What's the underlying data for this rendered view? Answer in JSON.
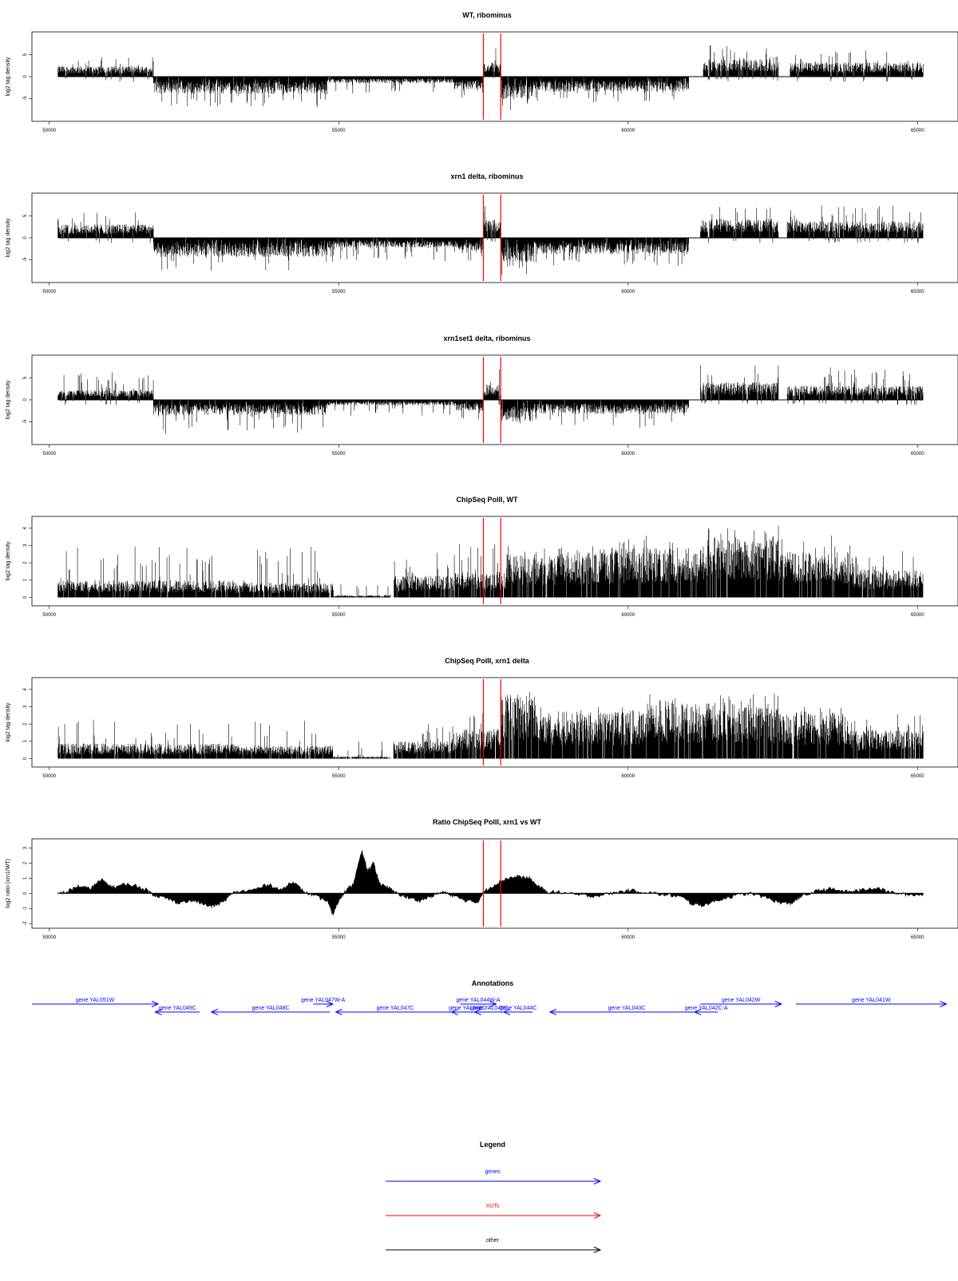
{
  "chart_data": [
    {
      "type": "bar",
      "title": "WT, ribominus",
      "ylabel": "log2 tag density",
      "xlim": [
        49700,
        65700
      ],
      "ylim": [
        -9.5,
        9.5
      ],
      "yticks": [
        -5,
        0,
        5
      ],
      "xticks": [
        50000,
        55000,
        60000,
        65000
      ],
      "markers": [
        57500,
        57800
      ],
      "segments": [
        {
          "x0": 50150,
          "x1": 51800,
          "sign": 1,
          "mean": 2.0,
          "max": 4.6
        },
        {
          "x0": 51800,
          "x1": 54800,
          "sign": -1,
          "mean": 3.2,
          "max": 7.0
        },
        {
          "x0": 54800,
          "x1": 57000,
          "sign": -1,
          "mean": 1.2,
          "max": 4.0
        },
        {
          "x0": 57000,
          "x1": 57500,
          "sign": -1,
          "mean": 2.4,
          "max": 5.0
        },
        {
          "x0": 57500,
          "x1": 57800,
          "sign": 1,
          "mean": 2.5,
          "max": 6.5
        },
        {
          "x0": 57800,
          "x1": 58350,
          "sign": -1,
          "mean": 4.2,
          "max": 8.0
        },
        {
          "x0": 58350,
          "x1": 61050,
          "sign": -1,
          "mean": 2.8,
          "max": 6.0
        },
        {
          "x0": 61300,
          "x1": 62600,
          "sign": 1,
          "mean": 3.2,
          "max": 7.2
        },
        {
          "x0": 62800,
          "x1": 65100,
          "sign": 1,
          "mean": 2.6,
          "max": 6.0
        }
      ]
    },
    {
      "type": "bar",
      "title": "xrn1 delta, ribominus",
      "ylabel": "log2 tag density",
      "xlim": [
        49700,
        65700
      ],
      "ylim": [
        -9.5,
        9.5
      ],
      "yticks": [
        -5,
        0,
        5
      ],
      "xticks": [
        50000,
        55000,
        60000,
        65000
      ],
      "markers": [
        57500,
        57800
      ],
      "segments": [
        {
          "x0": 50150,
          "x1": 51800,
          "sign": 1,
          "mean": 2.5,
          "max": 6.5
        },
        {
          "x0": 51800,
          "x1": 54800,
          "sign": -1,
          "mean": 3.5,
          "max": 7.5
        },
        {
          "x0": 54800,
          "x1": 57000,
          "sign": -1,
          "mean": 1.8,
          "max": 5.5
        },
        {
          "x0": 57000,
          "x1": 57500,
          "sign": -1,
          "mean": 2.8,
          "max": 6.5
        },
        {
          "x0": 57500,
          "x1": 57800,
          "sign": 1,
          "mean": 3.5,
          "max": 8.5
        },
        {
          "x0": 57800,
          "x1": 58350,
          "sign": -1,
          "mean": 4.5,
          "max": 8.5
        },
        {
          "x0": 58350,
          "x1": 61050,
          "sign": -1,
          "mean": 3.0,
          "max": 6.5
        },
        {
          "x0": 61250,
          "x1": 62600,
          "sign": 1,
          "mean": 3.5,
          "max": 8.5
        },
        {
          "x0": 62750,
          "x1": 65100,
          "sign": 1,
          "mean": 3.0,
          "max": 7.5
        }
      ]
    },
    {
      "type": "bar",
      "title": "xrn1set1 delta, ribominus",
      "ylabel": "log2 tag density",
      "xlim": [
        49700,
        65700
      ],
      "ylim": [
        -9.5,
        9.5
      ],
      "yticks": [
        -5,
        0,
        5
      ],
      "xticks": [
        50000,
        55000,
        60000,
        65000
      ],
      "markers": [
        57500,
        57800
      ],
      "segments": [
        {
          "x0": 50150,
          "x1": 51800,
          "sign": 1,
          "mean": 1.8,
          "max": 6.5
        },
        {
          "x0": 51800,
          "x1": 54800,
          "sign": -1,
          "mean": 2.8,
          "max": 8.0
        },
        {
          "x0": 54800,
          "x1": 57000,
          "sign": -1,
          "mean": 1.0,
          "max": 4.0
        },
        {
          "x0": 57000,
          "x1": 57500,
          "sign": -1,
          "mean": 2.0,
          "max": 4.5
        },
        {
          "x0": 57500,
          "x1": 57800,
          "sign": 1,
          "mean": 2.8,
          "max": 7.5
        },
        {
          "x0": 57800,
          "x1": 58350,
          "sign": -1,
          "mean": 4.0,
          "max": 8.5
        },
        {
          "x0": 58350,
          "x1": 61050,
          "sign": -1,
          "mean": 2.6,
          "max": 6.5
        },
        {
          "x0": 61250,
          "x1": 62600,
          "sign": 1,
          "mean": 3.2,
          "max": 8.0
        },
        {
          "x0": 62750,
          "x1": 65100,
          "sign": 1,
          "mean": 2.6,
          "max": 7.5
        }
      ]
    },
    {
      "type": "bar",
      "title": "ChipSeq PolII, WT",
      "ylabel": "log2 tag density",
      "xlim": [
        49700,
        65700
      ],
      "ylim": [
        -0.3,
        4.5
      ],
      "yticks": [
        0,
        1,
        2,
        3,
        4
      ],
      "xticks": [
        50000,
        55000,
        60000,
        65000
      ],
      "markers": [
        57500,
        57800
      ],
      "segments": [
        {
          "x0": 50150,
          "x1": 53200,
          "sign": 1,
          "mean": 0.8,
          "max": 3.0
        },
        {
          "x0": 53200,
          "x1": 54900,
          "sign": 1,
          "mean": 0.7,
          "max": 3.0
        },
        {
          "x0": 54900,
          "x1": 55900,
          "sign": 1,
          "mean": 0.1,
          "max": 1.0
        },
        {
          "x0": 55950,
          "x1": 57000,
          "sign": 1,
          "mean": 1.0,
          "max": 2.6
        },
        {
          "x0": 57000,
          "x1": 57900,
          "sign": 1,
          "mean": 1.2,
          "max": 3.2
        },
        {
          "x0": 57900,
          "x1": 59500,
          "sign": 1,
          "mean": 2.0,
          "max": 3.0
        },
        {
          "x0": 59500,
          "x1": 61300,
          "sign": 1,
          "mean": 2.3,
          "max": 3.6
        },
        {
          "x0": 61300,
          "x1": 62600,
          "sign": 1,
          "mean": 2.8,
          "max": 4.3
        },
        {
          "x0": 62600,
          "x1": 63900,
          "sign": 1,
          "mean": 2.1,
          "max": 3.8
        },
        {
          "x0": 63900,
          "x1": 65100,
          "sign": 1,
          "mean": 1.3,
          "max": 2.9
        }
      ]
    },
    {
      "type": "bar",
      "title": "ChipSeq PolII, xrn1 delta",
      "ylabel": "log2 tag density",
      "xlim": [
        49700,
        65700
      ],
      "ylim": [
        -0.3,
        4.5
      ],
      "yticks": [
        0,
        1,
        2,
        3,
        4
      ],
      "xticks": [
        50000,
        55000,
        60000,
        65000
      ],
      "markers": [
        57500,
        57800
      ],
      "segments": [
        {
          "x0": 50150,
          "x1": 53200,
          "sign": 1,
          "mean": 0.7,
          "max": 2.3
        },
        {
          "x0": 53200,
          "x1": 54900,
          "sign": 1,
          "mean": 0.6,
          "max": 2.2
        },
        {
          "x0": 54900,
          "x1": 55900,
          "sign": 1,
          "mean": 0.1,
          "max": 1.0
        },
        {
          "x0": 55950,
          "x1": 57000,
          "sign": 1,
          "mean": 0.8,
          "max": 2.0
        },
        {
          "x0": 57000,
          "x1": 57800,
          "sign": 1,
          "mean": 1.4,
          "max": 2.8
        },
        {
          "x0": 57800,
          "x1": 58400,
          "sign": 1,
          "mean": 3.0,
          "max": 4.0
        },
        {
          "x0": 58400,
          "x1": 60300,
          "sign": 1,
          "mean": 2.2,
          "max": 3.0
        },
        {
          "x0": 60300,
          "x1": 62600,
          "sign": 1,
          "mean": 2.6,
          "max": 3.8
        },
        {
          "x0": 62600,
          "x1": 63800,
          "sign": 1,
          "mean": 2.2,
          "max": 3.3
        },
        {
          "x0": 63800,
          "x1": 65100,
          "sign": 1,
          "mean": 1.3,
          "max": 2.6
        }
      ]
    },
    {
      "type": "area",
      "title": "Ratio ChipSeq PolII, xrn1 vs WT",
      "ylabel": "log2 ratio (xrn1/WT)",
      "xlim": [
        49700,
        65700
      ],
      "ylim": [
        -2.1,
        3.4
      ],
      "yticks": [
        -2,
        -1,
        0,
        1,
        2,
        3
      ],
      "xticks": [
        50000,
        55000,
        60000,
        65000
      ],
      "markers": [
        57500,
        57800
      ],
      "profile": [
        [
          50150,
          0.0
        ],
        [
          50300,
          0.1
        ],
        [
          50500,
          0.5
        ],
        [
          50700,
          0.3
        ],
        [
          50900,
          0.9
        ],
        [
          51100,
          0.4
        ],
        [
          51300,
          0.6
        ],
        [
          51500,
          0.5
        ],
        [
          51700,
          0.2
        ],
        [
          51800,
          -0.1
        ],
        [
          52000,
          -0.3
        ],
        [
          52200,
          -0.6
        ],
        [
          52500,
          -0.5
        ],
        [
          52800,
          -0.9
        ],
        [
          53000,
          -0.6
        ],
        [
          53200,
          0.1
        ],
        [
          53500,
          0.2
        ],
        [
          53800,
          0.6
        ],
        [
          54000,
          0.2
        ],
        [
          54200,
          0.8
        ],
        [
          54400,
          0.1
        ],
        [
          54600,
          -0.2
        ],
        [
          54800,
          -0.5
        ],
        [
          54900,
          -1.4
        ],
        [
          55000,
          -0.5
        ],
        [
          55100,
          0.1
        ],
        [
          55250,
          0.6
        ],
        [
          55400,
          2.8
        ],
        [
          55500,
          1.5
        ],
        [
          55600,
          2.0
        ],
        [
          55700,
          0.7
        ],
        [
          55850,
          0.4
        ],
        [
          56000,
          0.0
        ],
        [
          56200,
          -0.3
        ],
        [
          56400,
          -0.5
        ],
        [
          56600,
          -0.2
        ],
        [
          56800,
          0.1
        ],
        [
          57000,
          -0.2
        ],
        [
          57200,
          -0.5
        ],
        [
          57400,
          -0.6
        ],
        [
          57500,
          0.1
        ],
        [
          57700,
          0.6
        ],
        [
          57900,
          1.0
        ],
        [
          58100,
          1.1
        ],
        [
          58300,
          1.0
        ],
        [
          58400,
          0.6
        ],
        [
          58600,
          0.1
        ],
        [
          58800,
          0.1
        ],
        [
          59100,
          -0.1
        ],
        [
          59400,
          -0.2
        ],
        [
          59700,
          0.0
        ],
        [
          60000,
          0.2
        ],
        [
          60300,
          0.1
        ],
        [
          60600,
          -0.1
        ],
        [
          60900,
          -0.2
        ],
        [
          61100,
          -0.7
        ],
        [
          61300,
          -0.8
        ],
        [
          61500,
          -0.5
        ],
        [
          61800,
          -0.2
        ],
        [
          62100,
          0.0
        ],
        [
          62400,
          -0.3
        ],
        [
          62600,
          -0.6
        ],
        [
          62800,
          -0.7
        ],
        [
          63000,
          -0.2
        ],
        [
          63300,
          0.2
        ],
        [
          63500,
          0.3
        ],
        [
          63800,
          0.1
        ],
        [
          64000,
          0.2
        ],
        [
          64300,
          0.4
        ],
        [
          64500,
          0.1
        ],
        [
          64800,
          -0.1
        ],
        [
          65100,
          -0.1
        ]
      ]
    }
  ],
  "annotations": {
    "title": "Annotations",
    "genes": [
      {
        "label": "gene YAL051W",
        "x1": 49700,
        "x2": 51880,
        "dir": "right",
        "row": 0
      },
      {
        "label": "gene YAL049C",
        "x1": 51830,
        "x2": 52600,
        "dir": "left",
        "row": 1
      },
      {
        "label": "gene YAL048C",
        "x1": 52800,
        "x2": 54850,
        "dir": "left",
        "row": 1
      },
      {
        "label": "gene YAL047W-A",
        "x1": 54560,
        "x2": 54900,
        "dir": "right",
        "row": 0
      },
      {
        "label": "gene YAL047C",
        "x1": 54950,
        "x2": 57000,
        "dir": "left",
        "row": 1
      },
      {
        "label": "gene YAL044W-A",
        "x1": 57100,
        "x2": 57720,
        "dir": "right",
        "row": 0
      },
      {
        "label": "gene YAL046C",
        "x1": 56950,
        "x2": 57500,
        "dir": "left",
        "row": 1
      },
      {
        "label": "gene YAL045C",
        "x1": 57350,
        "x2": 57850,
        "dir": "left",
        "row": 1
      },
      {
        "label": "gene YAL044C",
        "x1": 57850,
        "x2": 58350,
        "dir": "left",
        "row": 1
      },
      {
        "label": "gene YAL043C",
        "x1": 58650,
        "x2": 61300,
        "dir": "left",
        "row": 1
      },
      {
        "label": "gene YAL042W",
        "x1": 61250,
        "x2": 62650,
        "dir": "right",
        "row": 0
      },
      {
        "label": "gene YAL042C-A",
        "x1": 61150,
        "x2": 61550,
        "dir": "left",
        "row": 1
      },
      {
        "label": "gene YAL041W",
        "x1": 62900,
        "x2": 65500,
        "dir": "right",
        "row": 0
      }
    ]
  },
  "legend": {
    "title": "Legend",
    "items": [
      {
        "label": "genes",
        "color": "#0000ff"
      },
      {
        "label": "XUTs",
        "color": "#ff0000"
      },
      {
        "label": "other",
        "color": "#000000"
      }
    ]
  },
  "colors": {
    "signal": "#000000",
    "marker": "#ff0000",
    "gene": "#0000ff"
  }
}
